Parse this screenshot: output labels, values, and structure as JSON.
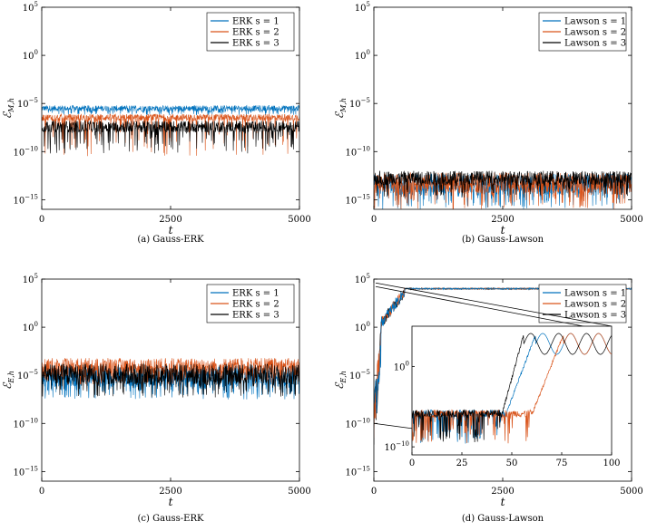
{
  "chart_data": [
    {
      "type": "line",
      "caption": "(a) Gauss-ERK",
      "xlabel": "t",
      "ylabel": "ℰ_{M,h}",
      "yscale": "log",
      "xlim": [
        0,
        5000
      ],
      "ylim_exp": [
        -16,
        5
      ],
      "xticks": [
        "0",
        "2500",
        "5000"
      ],
      "yticks": [
        "10^5",
        "10^0",
        "10^−5",
        "10^−10",
        "10^−15"
      ],
      "legend_position": "top-right",
      "series": [
        {
          "name": "ERK s = 1",
          "color": "#0072BD",
          "log10_band": [
            -5.8,
            -5.2
          ],
          "spike_min": -6.2
        },
        {
          "name": "ERK s = 2",
          "color": "#D95319",
          "log10_band": [
            -6.8,
            -6.1
          ],
          "spike_min": -10.5
        },
        {
          "name": "ERK s = 3",
          "color": "#000000",
          "log10_band": [
            -8.0,
            -6.8
          ],
          "spike_min": -10.2
        }
      ]
    },
    {
      "type": "line",
      "caption": "(b) Gauss-Lawson",
      "xlabel": "t",
      "ylabel": "ℰ_{M,h}",
      "yscale": "log",
      "xlim": [
        0,
        5000
      ],
      "ylim_exp": [
        -16,
        5
      ],
      "xticks": [
        "0",
        "2500",
        "5000"
      ],
      "yticks": [
        "10^5",
        "10^0",
        "10^−5",
        "10^−10",
        "10^−15"
      ],
      "legend_position": "top-right",
      "series": [
        {
          "name": "Lawson s = 1",
          "color": "#0072BD",
          "log10_band": [
            -14.5,
            -12.3
          ],
          "spike_min": -16
        },
        {
          "name": "Lawson s = 2",
          "color": "#D95319",
          "log10_band": [
            -14.3,
            -12.2
          ],
          "spike_min": -16
        },
        {
          "name": "Lawson s = 3",
          "color": "#000000",
          "log10_band": [
            -13.5,
            -12.0
          ],
          "spike_min": -14.8
        }
      ]
    },
    {
      "type": "line",
      "caption": "(c) Gauss-ERK",
      "xlabel": "t",
      "ylabel": "ℰ_{E,h}",
      "yscale": "log",
      "xlim": [
        0,
        5000
      ],
      "ylim_exp": [
        -16,
        5
      ],
      "xticks": [
        "0",
        "2500",
        "5000"
      ],
      "yticks": [
        "10^5",
        "10^0",
        "10^−5",
        "10^−10",
        "10^−15"
      ],
      "legend_position": "top-right",
      "series": [
        {
          "name": "ERK s = 1",
          "color": "#0072BD",
          "log10_band": [
            -6.2,
            -4.0
          ],
          "spike_min": -7.5
        },
        {
          "name": "ERK s = 2",
          "color": "#D95319",
          "log10_band": [
            -5.0,
            -3.2
          ],
          "spike_min": -6.0
        },
        {
          "name": "ERK s = 3",
          "color": "#000000",
          "log10_band": [
            -6.0,
            -3.8
          ],
          "spike_min": -7.3
        }
      ]
    },
    {
      "type": "line",
      "caption": "(d) Gauss-Lawson",
      "xlabel": "t",
      "ylabel": "ℰ_{E,h}",
      "yscale": "log",
      "xlim": [
        0,
        5000
      ],
      "ylim_exp": [
        -16,
        5
      ],
      "xticks": [
        "0",
        "2500",
        "5000"
      ],
      "yticks": [
        "10^5",
        "10^0",
        "10^−5",
        "10^−10",
        "10^−15"
      ],
      "legend_position": "top-right",
      "series": [
        {
          "name": "Lawson s = 1",
          "color": "#0072BD",
          "growth_start": 10,
          "plateau": 4.0
        },
        {
          "name": "Lawson s = 2",
          "color": "#D95319",
          "growth_start": 15,
          "plateau": 4.0
        },
        {
          "name": "Lawson s = 3",
          "color": "#000000",
          "growth_start": 0,
          "plateau": 4.0
        }
      ],
      "inset": {
        "xlim": [
          0,
          100
        ],
        "xticks": [
          "0",
          "25",
          "50",
          "75",
          "100"
        ],
        "yticks": [
          "10^0",
          "10^−10"
        ],
        "series": [
          {
            "name": "Lawson s = 1",
            "color": "#0072BD",
            "growth_start": 47,
            "growth_end": 62
          },
          {
            "name": "Lawson s = 2",
            "color": "#D95319",
            "growth_start": 60,
            "growth_end": 76
          },
          {
            "name": "Lawson s = 3",
            "color": "#000000",
            "growth_start": 45,
            "growth_end": 56
          }
        ]
      }
    }
  ]
}
